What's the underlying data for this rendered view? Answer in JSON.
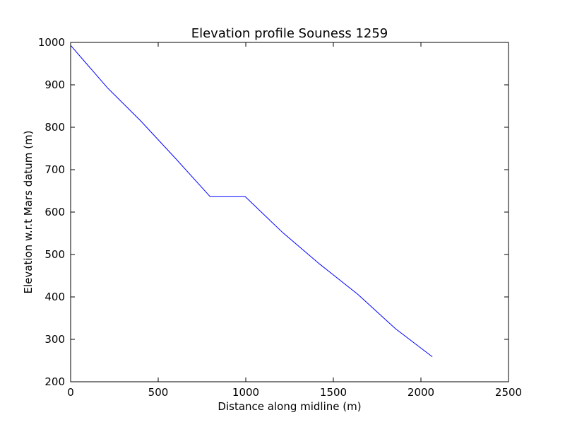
{
  "chart_data": {
    "type": "line",
    "title": "Elevation profile Souness 1259",
    "xlabel": "Distance along midline (m)",
    "ylabel": "Elevation w.r.t Mars datum (m)",
    "xlim": [
      0,
      2500
    ],
    "ylim": [
      200,
      1000
    ],
    "x_ticks": [
      0,
      500,
      1000,
      1500,
      2000,
      2500
    ],
    "y_ticks": [
      200,
      300,
      400,
      500,
      600,
      700,
      800,
      900,
      1000
    ],
    "x_tick_labels": [
      "0",
      "500",
      "1000",
      "1500",
      "2000",
      "2500"
    ],
    "y_tick_labels": [
      "200",
      "300",
      "400",
      "500",
      "600",
      "700",
      "800",
      "900",
      "1000"
    ],
    "grid": false,
    "legend": "none",
    "series": [
      {
        "color": "#0000ff",
        "x": [
          0,
          210,
          400,
          600,
          795,
          995,
          1210,
          1420,
          1640,
          1855,
          2065
        ],
        "y": [
          993,
          893,
          815,
          726,
          637,
          637,
          552,
          478,
          406,
          325,
          259
        ]
      }
    ]
  }
}
